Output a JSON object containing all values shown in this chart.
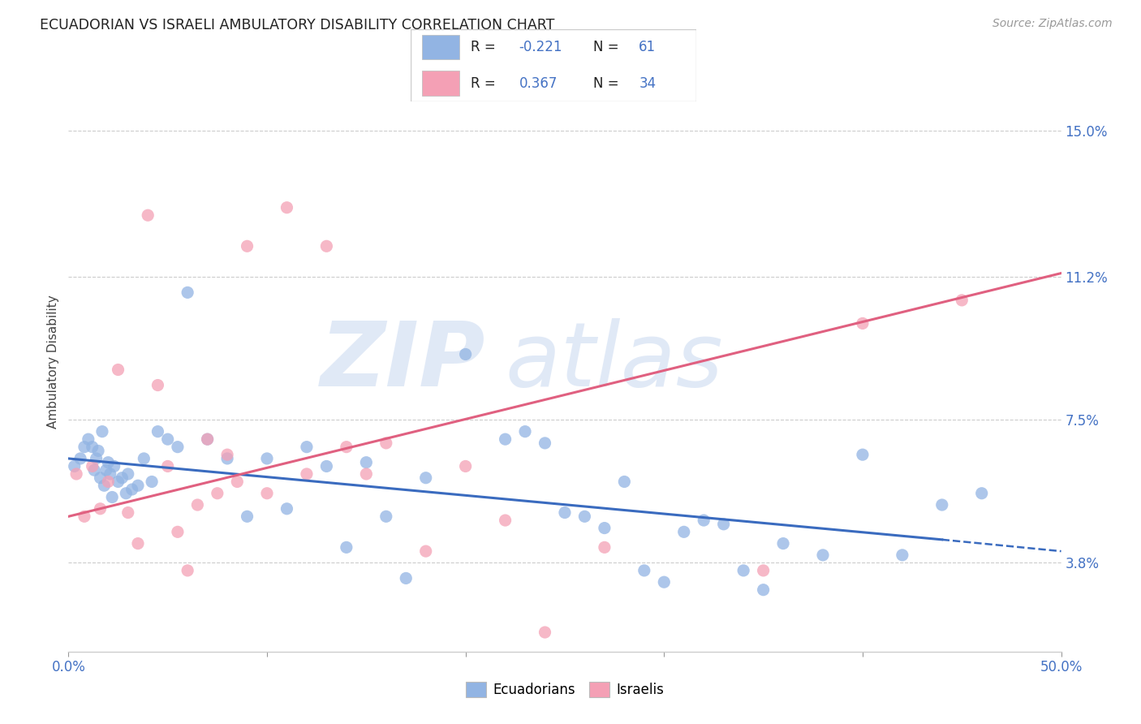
{
  "title": "ECUADORIAN VS ISRAELI AMBULATORY DISABILITY CORRELATION CHART",
  "source": "Source: ZipAtlas.com",
  "ylabel": "Ambulatory Disability",
  "yticks": [
    "3.8%",
    "7.5%",
    "11.2%",
    "15.0%"
  ],
  "ytick_vals": [
    3.8,
    7.5,
    11.2,
    15.0
  ],
  "xmin": 0.0,
  "xmax": 50.0,
  "ymin": 1.5,
  "ymax": 16.5,
  "ecuadorian_color": "#92b4e3",
  "israeli_color": "#f4a0b5",
  "ecuadorian_line_color": "#3a6bbf",
  "israeli_line_color": "#e06080",
  "legend_label1": "Ecuadorians",
  "legend_label2": "Israelis",
  "ecu_trend_x0": 0.0,
  "ecu_trend_y0": 6.5,
  "ecu_trend_x1": 44.0,
  "ecu_trend_y1": 4.4,
  "ecu_dash_x0": 44.0,
  "ecu_dash_y0": 4.4,
  "ecu_dash_x1": 50.0,
  "ecu_dash_y1": 4.1,
  "isr_trend_x0": 0.0,
  "isr_trend_y0": 5.0,
  "isr_trend_x1": 50.0,
  "isr_trend_y1": 11.3,
  "ecuadorians_x": [
    0.3,
    0.6,
    0.8,
    1.0,
    1.2,
    1.3,
    1.4,
    1.5,
    1.6,
    1.7,
    1.8,
    1.9,
    2.0,
    2.1,
    2.2,
    2.3,
    2.5,
    2.7,
    2.9,
    3.0,
    3.2,
    3.5,
    3.8,
    4.2,
    4.5,
    5.0,
    5.5,
    6.0,
    7.0,
    8.0,
    9.0,
    10.0,
    11.0,
    12.0,
    13.0,
    14.0,
    15.0,
    16.0,
    17.0,
    18.0,
    20.0,
    22.0,
    23.0,
    24.0,
    25.0,
    26.0,
    27.0,
    28.0,
    29.0,
    30.0,
    31.0,
    32.0,
    33.0,
    34.0,
    35.0,
    36.0,
    38.0,
    40.0,
    42.0,
    44.0,
    46.0
  ],
  "ecuadorians_y": [
    6.3,
    6.5,
    6.8,
    7.0,
    6.8,
    6.2,
    6.5,
    6.7,
    6.0,
    7.2,
    5.8,
    6.2,
    6.4,
    6.1,
    5.5,
    6.3,
    5.9,
    6.0,
    5.6,
    6.1,
    5.7,
    5.8,
    6.5,
    5.9,
    7.2,
    7.0,
    6.8,
    10.8,
    7.0,
    6.5,
    5.0,
    6.5,
    5.2,
    6.8,
    6.3,
    4.2,
    6.4,
    5.0,
    3.4,
    6.0,
    9.2,
    7.0,
    7.2,
    6.9,
    5.1,
    5.0,
    4.7,
    5.9,
    3.6,
    3.3,
    4.6,
    4.9,
    4.8,
    3.6,
    3.1,
    4.3,
    4.0,
    6.6,
    4.0,
    5.3,
    5.6
  ],
  "israelis_x": [
    0.4,
    0.8,
    1.2,
    1.6,
    2.0,
    2.5,
    3.0,
    3.5,
    4.0,
    4.5,
    5.0,
    5.5,
    6.0,
    6.5,
    7.0,
    7.5,
    8.0,
    8.5,
    9.0,
    10.0,
    11.0,
    12.0,
    13.0,
    14.0,
    15.0,
    16.0,
    18.0,
    20.0,
    22.0,
    24.0,
    27.0,
    35.0,
    40.0,
    45.0
  ],
  "israelis_y": [
    6.1,
    5.0,
    6.3,
    5.2,
    5.9,
    8.8,
    5.1,
    4.3,
    12.8,
    8.4,
    6.3,
    4.6,
    3.6,
    5.3,
    7.0,
    5.6,
    6.6,
    5.9,
    12.0,
    5.6,
    13.0,
    6.1,
    12.0,
    6.8,
    6.1,
    6.9,
    4.1,
    6.3,
    4.9,
    2.0,
    4.2,
    3.6,
    10.0,
    10.6
  ]
}
